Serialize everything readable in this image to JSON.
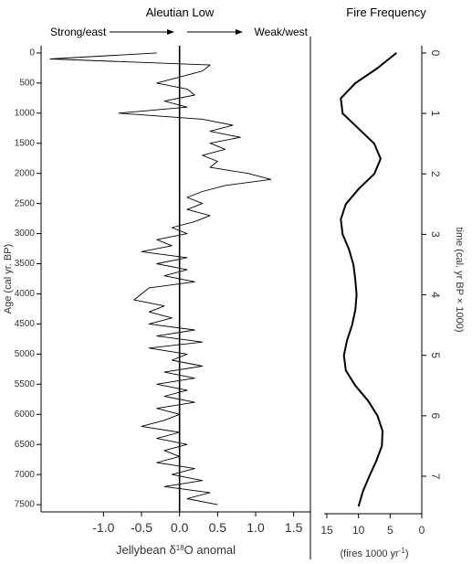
{
  "chart_data": [
    {
      "type": "line",
      "title": "Aleutian Low",
      "annotations": [
        "Strong/east",
        "Weak/west"
      ],
      "xlabel": [
        "Jellybean δ",
        "18",
        "O anomal"
      ],
      "ylabel": "Age (cal yr. BP)",
      "inverted_y": true,
      "xlim": [
        -1.82,
        1.72
      ],
      "xticks": [
        {
          "value": -1,
          "label": "-1.0"
        },
        -0.5,
        {
          "value": 0,
          "label": "0.0"
        },
        0.5,
        {
          "value": 1,
          "label": "1.0"
        },
        1.5
      ],
      "ylim": [
        -120,
        7620
      ],
      "yticks": [
        0,
        500,
        1000,
        1500,
        2000,
        2500,
        3000,
        3500,
        4000,
        4500,
        5000,
        5500,
        6000,
        6500,
        7000,
        7500
      ],
      "zero_line": 0,
      "color": "#000000",
      "y": [
        0,
        100,
        200,
        300,
        400,
        500,
        600,
        700,
        800,
        900,
        1000,
        1100,
        1200,
        1300,
        1400,
        1500,
        1600,
        1700,
        1800,
        1900,
        2000,
        2100,
        2200,
        2300,
        2400,
        2500,
        2600,
        2700,
        2800,
        2900,
        3000,
        3100,
        3200,
        3300,
        3400,
        3500,
        3600,
        3700,
        3800,
        3900,
        4000,
        4100,
        4200,
        4300,
        4400,
        4500,
        4600,
        4700,
        4800,
        4900,
        5000,
        5100,
        5200,
        5300,
        5400,
        5500,
        5600,
        5700,
        5800,
        5900,
        6000,
        6100,
        6200,
        6300,
        6400,
        6500,
        6600,
        6700,
        6800,
        6900,
        7000,
        7100,
        7200,
        7300,
        7400,
        7500
      ],
      "values": [
        -0.3,
        -1.7,
        0.4,
        0.3,
        0.0,
        -0.3,
        0.1,
        0.2,
        -0.2,
        0.1,
        -0.8,
        0.3,
        0.7,
        0.4,
        0.8,
        0.4,
        0.6,
        0.3,
        0.5,
        0.4,
        0.9,
        1.2,
        0.6,
        0.3,
        0.1,
        0.3,
        0.1,
        0.4,
        0.2,
        -0.1,
        0.1,
        -0.3,
        -0.1,
        -0.5,
        0.1,
        -0.3,
        0.1,
        -0.2,
        0.2,
        -0.4,
        -0.5,
        -0.6,
        -0.2,
        -0.4,
        -0.1,
        -0.4,
        0.2,
        -0.3,
        0.3,
        -0.4,
        0.1,
        -0.1,
        0.3,
        -0.2,
        0.2,
        -0.3,
        0.1,
        -0.2,
        0.2,
        -0.3,
        0.0,
        -0.2,
        -0.5,
        0.0,
        -0.3,
        0.1,
        -0.2,
        0.0,
        -0.3,
        0.2,
        -0.1,
        0.3,
        -0.2,
        0.4,
        0.1,
        0.5
      ]
    },
    {
      "type": "line",
      "title": "Fire Frequency",
      "xlabel": [
        "(fires 1000 yr",
        "-1",
        ")"
      ],
      "ylabel": "time (cal. yr BP × 1000)",
      "inverted_y": true,
      "yaxis_side": "right",
      "xlim": [
        15,
        0
      ],
      "xticks": [
        15,
        10,
        5,
        0
      ],
      "ylim": [
        -0.12,
        7.62
      ],
      "yticks": [
        0,
        1,
        2,
        3,
        4,
        5,
        6,
        7
      ],
      "color": "#000000",
      "y": [
        0,
        0.25,
        0.5,
        0.75,
        1,
        1.25,
        1.5,
        1.75,
        2,
        2.25,
        2.5,
        2.75,
        3,
        3.25,
        3.5,
        3.75,
        4,
        4.25,
        4.5,
        4.75,
        5,
        5.25,
        5.5,
        5.75,
        6,
        6.25,
        6.5,
        6.75,
        7,
        7.25,
        7.5
      ],
      "values": [
        4,
        7,
        10.5,
        12.8,
        12.5,
        10,
        7.5,
        6.5,
        7.5,
        10,
        12,
        12.8,
        12.5,
        11.5,
        10.8,
        10.5,
        10.3,
        10.5,
        11,
        11.8,
        12.3,
        12,
        10.5,
        8.5,
        7,
        6.2,
        6.3,
        7.2,
        8.3,
        9.3,
        10
      ]
    }
  ]
}
